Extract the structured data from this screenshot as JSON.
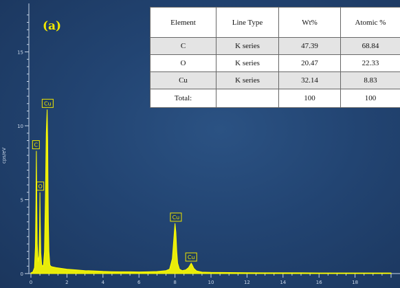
{
  "panel_label": "(a)",
  "chart_data": {
    "type": "line",
    "title": "",
    "xlabel": "",
    "ylabel": "cps/eV",
    "xlim": [
      -0.5,
      20.5
    ],
    "ylim": [
      0,
      17.8
    ],
    "x_ticks": [
      0,
      2,
      4,
      6,
      8,
      10,
      12,
      14,
      16,
      18
    ],
    "y_ticks": [
      0,
      5,
      10,
      15
    ],
    "grid": false,
    "series": [
      {
        "color": "#ffff00",
        "x": [
          0.0,
          0.1,
          0.2,
          0.25,
          0.28,
          0.3,
          0.32,
          0.35,
          0.4,
          0.45,
          0.48,
          0.5,
          0.52,
          0.55,
          0.6,
          0.65,
          0.7,
          0.75,
          0.8,
          0.85,
          0.9,
          0.93,
          0.95,
          0.97,
          1.0,
          1.05,
          1.1,
          1.2,
          1.4,
          1.7,
          2.0,
          2.5,
          3.0,
          3.5,
          4.0,
          4.5,
          5.0,
          5.5,
          6.0,
          6.5,
          7.0,
          7.5,
          7.7,
          7.85,
          7.95,
          8.0,
          8.05,
          8.1,
          8.15,
          8.25,
          8.4,
          8.6,
          8.75,
          8.85,
          8.9,
          8.95,
          9.05,
          9.2,
          9.5,
          10.0,
          11.0,
          12.0,
          13.0,
          14.0,
          15.0,
          16.0,
          17.0,
          18.0,
          19.0,
          20.0
        ],
        "y": [
          0.05,
          0.1,
          0.4,
          1.8,
          5.0,
          8.3,
          5.5,
          2.0,
          0.8,
          1.2,
          3.2,
          5.5,
          3.5,
          1.4,
          0.6,
          0.5,
          0.6,
          1.5,
          5.0,
          9.5,
          11.1,
          9.0,
          6.0,
          3.5,
          1.5,
          0.6,
          0.5,
          0.45,
          0.4,
          0.35,
          0.3,
          0.25,
          0.2,
          0.18,
          0.15,
          0.13,
          0.12,
          0.12,
          0.11,
          0.12,
          0.14,
          0.2,
          0.3,
          1.0,
          2.6,
          3.4,
          2.8,
          1.5,
          0.7,
          0.3,
          0.2,
          0.25,
          0.4,
          0.6,
          0.7,
          0.6,
          0.35,
          0.18,
          0.1,
          0.08,
          0.07,
          0.06,
          0.05,
          0.05,
          0.05,
          0.04,
          0.04,
          0.04,
          0.04,
          0.04
        ]
      }
    ],
    "annotations": [
      {
        "text": "Cu",
        "x": 0.93,
        "y": 11.1
      },
      {
        "text": "C",
        "x": 0.28,
        "y": 8.3
      },
      {
        "text": "O",
        "x": 0.52,
        "y": 5.5
      },
      {
        "text": "Cu",
        "x": 8.05,
        "y": 3.4
      },
      {
        "text": "Cu",
        "x": 8.9,
        "y": 0.7
      }
    ],
    "table": {
      "columns": [
        "Element",
        "Line Type",
        "Wt%",
        "Atomic %"
      ],
      "rows": [
        [
          "C",
          "K series",
          "47.39",
          "68.84"
        ],
        [
          "O",
          "K series",
          "20.47",
          "22.33"
        ],
        [
          "Cu",
          "K series",
          "32.14",
          "8.83"
        ],
        [
          "Total:",
          "",
          "100",
          "100"
        ]
      ]
    }
  }
}
